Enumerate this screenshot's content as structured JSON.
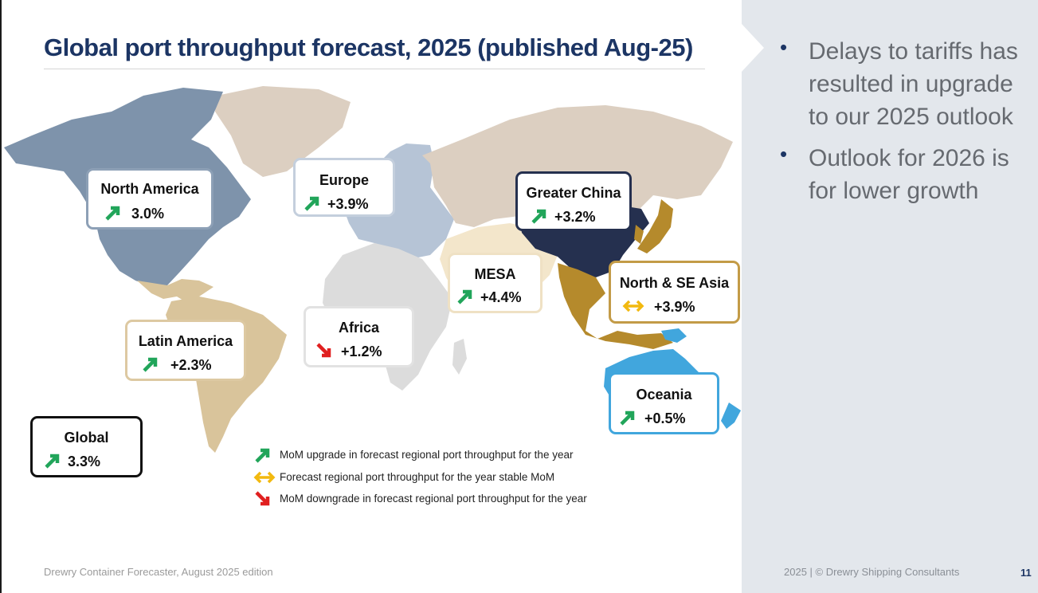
{
  "slide": {
    "title": "Global port throughput forecast, 2025 (published Aug-25)",
    "page_number": "11"
  },
  "colors": {
    "title": "#1c3564",
    "up_arrow": "#21a55a",
    "stable_arrow": "#f2b90f",
    "down_arrow": "#e01f1f",
    "north_america": "#7e93ab",
    "europe": "#b6c4d6",
    "greater_china": "#25304f",
    "north_se_asia": "#b58a2c",
    "oceania": "#41a6dd",
    "latin_america": "#d9c49b",
    "mesa": "#f3e6cb",
    "africa": "#dcdcdc",
    "other_land": "#dccfc1"
  },
  "regions": [
    {
      "name": "North America",
      "value": "3.0%",
      "trend": "up",
      "color": "#7e93ab"
    },
    {
      "name": "Europe",
      "value": "+3.9%",
      "trend": "up",
      "color": "#b6c4d6"
    },
    {
      "name": "Greater China",
      "value": "+3.2%",
      "trend": "up",
      "color": "#25304f"
    },
    {
      "name": "MESA",
      "value": "+4.4%",
      "trend": "up",
      "color": "#f3e6cb"
    },
    {
      "name": "North & SE Asia",
      "value": "+3.9%",
      "trend": "stable",
      "color": "#b58a2c"
    },
    {
      "name": "Latin America",
      "value": "+2.3%",
      "trend": "up",
      "color": "#d9c49b"
    },
    {
      "name": "Africa",
      "value": "+1.2%",
      "trend": "down",
      "color": "#cfcfcf"
    },
    {
      "name": "Oceania",
      "value": "+0.5%",
      "trend": "up",
      "color": "#41a6dd"
    },
    {
      "name": "Global",
      "value": "3.3%",
      "trend": "up",
      "color": "#111111"
    }
  ],
  "legend": [
    {
      "icon": "up-arrow",
      "text": "MoM upgrade in forecast regional port throughput for the year"
    },
    {
      "icon": "stable-arrow",
      "text": "Forecast regional port throughput for the year stable MoM"
    },
    {
      "icon": "down-arrow",
      "text": "MoM downgrade in forecast regional port throughput for the year"
    }
  ],
  "bullets": [
    "Delays to tariffs has resulted in upgrade to our 2025 outlook",
    "Outlook for 2026 is for lower growth"
  ],
  "footer": {
    "left": "Drewry Container Forecaster, August 2025 edition",
    "right": "2025   |   © Drewry Shipping Consultants"
  }
}
